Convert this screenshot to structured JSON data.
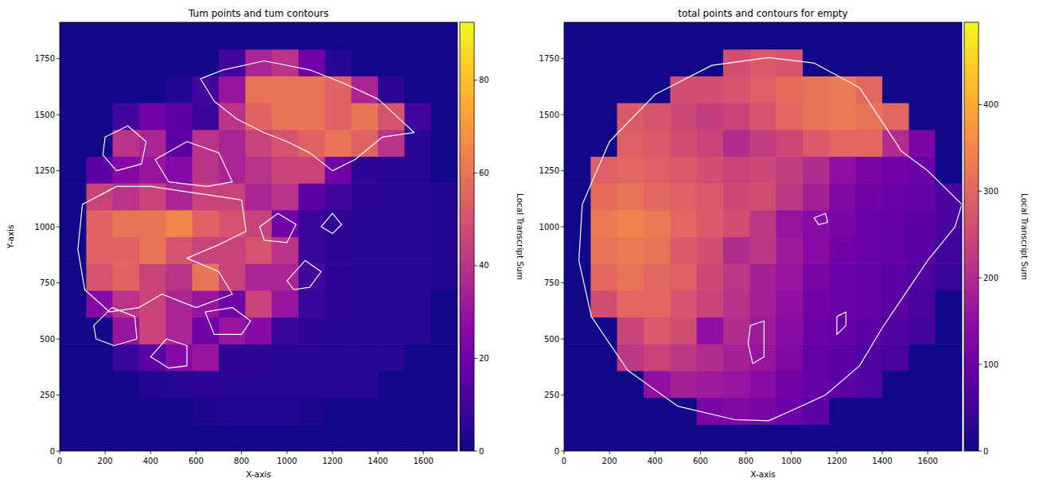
{
  "chart_data": [
    {
      "type": "heatmap",
      "title": "Tum points and tum contours",
      "x_label": "X-axis",
      "y_label": "Y-axis",
      "colorbar_label": "Local Transcript Sum",
      "xlim": [
        0,
        1750
      ],
      "ylim": [
        0,
        1912
      ],
      "xticks": [
        0,
        200,
        400,
        600,
        800,
        1000,
        1200,
        1400,
        1600
      ],
      "yticks": [
        0,
        250,
        500,
        750,
        1000,
        1250,
        1500,
        1750
      ],
      "x_edges": [
        0,
        117,
        233,
        350,
        467,
        583,
        700,
        817,
        933,
        1050,
        1167,
        1283,
        1400,
        1517,
        1633,
        1750
      ],
      "y_edges": [
        0,
        119.5,
        239,
        358.5,
        478,
        597.5,
        717,
        836.5,
        956,
        1075.5,
        1195,
        1314.5,
        1434,
        1553.5,
        1673,
        1792.5,
        1912
      ],
      "cells": [
        [
          1,
          1,
          1,
          1,
          1,
          1,
          1,
          1,
          1,
          1,
          1,
          1,
          1,
          1,
          1
        ],
        [
          1,
          1,
          1,
          1,
          1,
          3,
          4,
          4,
          4,
          3,
          1,
          1,
          1,
          1,
          1
        ],
        [
          1,
          1,
          1,
          4,
          5,
          6,
          5,
          5,
          5,
          5,
          5,
          5,
          1,
          1,
          1
        ],
        [
          1,
          1,
          8,
          15,
          25,
          30,
          6,
          6,
          5,
          5,
          5,
          5,
          5,
          1,
          1
        ],
        [
          1,
          1,
          30,
          45,
          35,
          20,
          30,
          25,
          8,
          6,
          5,
          5,
          5,
          5,
          1
        ],
        [
          1,
          25,
          40,
          45,
          35,
          30,
          20,
          45,
          30,
          8,
          6,
          5,
          5,
          5,
          1
        ],
        [
          1,
          50,
          55,
          45,
          40,
          60,
          45,
          35,
          35,
          10,
          6,
          5,
          5,
          5,
          4
        ],
        [
          1,
          55,
          55,
          60,
          50,
          45,
          45,
          50,
          40,
          8,
          6,
          5,
          5,
          5,
          4
        ],
        [
          1,
          55,
          60,
          60,
          65,
          55,
          50,
          45,
          20,
          8,
          6,
          5,
          5,
          5,
          4
        ],
        [
          1,
          45,
          40,
          45,
          35,
          45,
          45,
          35,
          40,
          15,
          10,
          6,
          5,
          5,
          4
        ],
        [
          1,
          15,
          25,
          30,
          25,
          40,
          35,
          40,
          45,
          45,
          20,
          6,
          5,
          5,
          1
        ],
        [
          1,
          1,
          40,
          35,
          15,
          40,
          35,
          45,
          50,
          55,
          60,
          55,
          40,
          5,
          1
        ],
        [
          1,
          1,
          10,
          20,
          15,
          8,
          40,
          55,
          60,
          60,
          55,
          60,
          50,
          10,
          1
        ],
        [
          1,
          1,
          1,
          1,
          4,
          10,
          30,
          60,
          60,
          60,
          55,
          35,
          6,
          1,
          1
        ],
        [
          1,
          1,
          1,
          1,
          1,
          1,
          10,
          35,
          40,
          20,
          5,
          1,
          1,
          1,
          1
        ],
        [
          1,
          1,
          1,
          1,
          1,
          1,
          1,
          1,
          1,
          1,
          1,
          1,
          1,
          1,
          1
        ]
      ],
      "color_range": [
        0,
        92.5
      ],
      "color_ticks": [
        0,
        20,
        40,
        60,
        80
      ],
      "contours": [
        {
          "x": [
            720,
            900,
            1100,
            1250,
            1400,
            1560,
            1420,
            1300,
            1200,
            1100,
            1000,
            900,
            780,
            680,
            620
          ],
          "y": [
            1700,
            1740,
            1700,
            1640,
            1570,
            1420,
            1400,
            1300,
            1250,
            1330,
            1380,
            1420,
            1480,
            1560,
            1660
          ]
        },
        {
          "x": [
            100,
            250,
            400,
            600,
            800,
            820,
            700,
            560,
            700,
            760,
            600,
            450,
            350,
            220,
            110,
            80
          ],
          "y": [
            1100,
            1180,
            1180,
            1150,
            1120,
            980,
            920,
            860,
            800,
            700,
            640,
            700,
            640,
            620,
            720,
            900
          ]
        },
        {
          "x": [
            200,
            300,
            380,
            360,
            250,
            190
          ],
          "y": [
            1400,
            1450,
            1380,
            1280,
            1250,
            1320
          ]
        },
        {
          "x": [
            420,
            560,
            700,
            760,
            650,
            480
          ],
          "y": [
            1300,
            1380,
            1330,
            1200,
            1180,
            1200
          ]
        },
        {
          "x": [
            150,
            230,
            330,
            340,
            240,
            160
          ],
          "y": [
            560,
            640,
            600,
            500,
            470,
            500
          ]
        },
        {
          "x": [
            400,
            470,
            560,
            560,
            480
          ],
          "y": [
            420,
            500,
            470,
            380,
            370
          ]
        },
        {
          "x": [
            640,
            760,
            840,
            800,
            680
          ],
          "y": [
            620,
            640,
            580,
            520,
            520
          ]
        },
        {
          "x": [
            1000,
            1080,
            1150,
            1100,
            1030
          ],
          "y": [
            760,
            850,
            800,
            730,
            720
          ]
        },
        {
          "x": [
            880,
            960,
            1040,
            1000,
            900
          ],
          "y": [
            1000,
            1060,
            1010,
            930,
            940
          ]
        },
        {
          "x": [
            1150,
            1200,
            1240,
            1200
          ],
          "y": [
            1000,
            1060,
            1010,
            970
          ]
        }
      ]
    },
    {
      "type": "heatmap",
      "title": "total points and contours for empty",
      "x_label": "X-axis",
      "colorbar_label": "Local Transcript Sum",
      "xlim": [
        0,
        1750
      ],
      "ylim": [
        0,
        1912
      ],
      "xticks": [
        0,
        200,
        400,
        600,
        800,
        1000,
        1200,
        1400,
        1600
      ],
      "yticks": [
        0,
        250,
        500,
        750,
        1000,
        1250,
        1500,
        1750
      ],
      "x_edges": [
        0,
        117,
        233,
        350,
        467,
        583,
        700,
        817,
        933,
        1050,
        1167,
        1283,
        1400,
        1517,
        1633,
        1750
      ],
      "y_edges": [
        0,
        119.5,
        239,
        358.5,
        478,
        597.5,
        717,
        836.5,
        956,
        1075.5,
        1195,
        1314.5,
        1434,
        1553.5,
        1673,
        1792.5,
        1912
      ],
      "cells": [
        [
          3,
          3,
          3,
          3,
          3,
          3,
          3,
          3,
          3,
          3,
          3,
          3,
          3,
          3,
          3
        ],
        [
          3,
          3,
          3,
          3,
          3,
          120,
          130,
          120,
          100,
          80,
          3,
          3,
          3,
          3,
          3
        ],
        [
          3,
          3,
          3,
          150,
          180,
          170,
          160,
          140,
          110,
          90,
          80,
          70,
          3,
          3,
          3
        ],
        [
          3,
          3,
          220,
          240,
          220,
          200,
          180,
          160,
          130,
          90,
          80,
          70,
          60,
          3,
          3
        ],
        [
          3,
          3,
          240,
          280,
          260,
          150,
          200,
          170,
          140,
          100,
          90,
          80,
          70,
          50,
          3
        ],
        [
          3,
          260,
          300,
          300,
          270,
          240,
          210,
          180,
          150,
          110,
          100,
          90,
          80,
          60,
          3
        ],
        [
          3,
          300,
          320,
          300,
          290,
          250,
          220,
          180,
          160,
          120,
          100,
          90,
          80,
          70,
          40
        ],
        [
          3,
          320,
          330,
          320,
          280,
          260,
          200,
          220,
          170,
          140,
          110,
          100,
          90,
          80,
          50
        ],
        [
          3,
          330,
          340,
          330,
          300,
          280,
          260,
          220,
          160,
          140,
          120,
          100,
          90,
          80,
          60
        ],
        [
          3,
          310,
          320,
          300,
          290,
          280,
          250,
          260,
          220,
          180,
          130,
          110,
          100,
          90,
          60
        ],
        [
          3,
          290,
          300,
          290,
          280,
          260,
          240,
          250,
          230,
          200,
          150,
          120,
          110,
          100,
          3
        ],
        [
          3,
          3,
          290,
          280,
          260,
          240,
          200,
          230,
          250,
          280,
          300,
          300,
          200,
          120,
          3
        ],
        [
          3,
          3,
          280,
          270,
          250,
          230,
          240,
          270,
          300,
          320,
          330,
          320,
          300,
          3,
          3
        ],
        [
          3,
          3,
          3,
          3,
          260,
          260,
          270,
          290,
          310,
          320,
          330,
          300,
          3,
          3,
          3
        ],
        [
          3,
          3,
          3,
          3,
          3,
          3,
          260,
          280,
          270,
          3,
          3,
          3,
          3,
          3,
          3
        ],
        [
          3,
          3,
          3,
          3,
          3,
          3,
          3,
          3,
          3,
          3,
          3,
          3,
          3,
          3,
          3
        ]
      ],
      "color_range": [
        0,
        495
      ],
      "color_ticks": [
        0,
        100,
        200,
        300,
        400
      ],
      "contours": [
        {
          "x": [
            1470,
            1300,
            1100,
            900,
            650,
            400,
            200,
            80,
            65,
            120,
            280,
            500,
            750,
            900,
            1000,
            1150,
            1300,
            1400,
            1500,
            1600,
            1720,
            1750,
            1600,
            1480
          ],
          "y": [
            1360,
            1620,
            1730,
            1755,
            1720,
            1590,
            1380,
            1100,
            850,
            600,
            360,
            200,
            140,
            135,
            180,
            250,
            380,
            550,
            700,
            850,
            1000,
            1100,
            1250,
            1340
          ]
        },
        {
          "x": [
            820,
            880,
            880,
            830,
            810
          ],
          "y": [
            560,
            580,
            420,
            390,
            480
          ]
        },
        {
          "x": [
            1100,
            1150,
            1160,
            1120
          ],
          "y": [
            1040,
            1060,
            1020,
            1010
          ]
        },
        {
          "x": [
            1200,
            1240,
            1240,
            1200
          ],
          "y": [
            600,
            620,
            560,
            520
          ]
        }
      ]
    }
  ]
}
